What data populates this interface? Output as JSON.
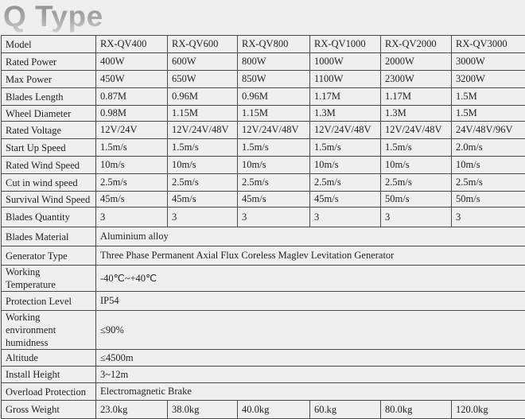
{
  "title": "Q Type",
  "table": {
    "rows": [
      {
        "label": "Model",
        "values": [
          "RX-QV400",
          "RX-QV600",
          "RX-QV800",
          "RX-QV1000",
          "RX-QV2000",
          "RX-QV3000"
        ]
      },
      {
        "label": "Rated Power",
        "values": [
          "400W",
          "600W",
          "800W",
          "1000W",
          "2000W",
          "3000W"
        ]
      },
      {
        "label": "Max Power",
        "values": [
          "450W",
          "650W",
          "850W",
          "1100W",
          "2300W",
          "3200W"
        ]
      },
      {
        "label": "Blades Length",
        "values": [
          "0.87M",
          "0.96M",
          "0.96M",
          "1.17M",
          "1.17M",
          "1.5M"
        ]
      },
      {
        "label": "Wheel Diameter",
        "values": [
          "0.98M",
          "1.15M",
          "1.15M",
          "1.3M",
          "1.3M",
          "1.5M"
        ]
      },
      {
        "label": "Rated Voltage",
        "values": [
          "12V/24V",
          "12V/24V/48V",
          "12V/24V/48V",
          "12V/24V/48V",
          "12V/24V/48V",
          "24V/48V/96V"
        ]
      },
      {
        "label": "Start Up Speed",
        "values": [
          "1.5m/s",
          "1.5m/s",
          "1.5m/s",
          "1.5m/s",
          "1.5m/s",
          "2.0m/s"
        ]
      },
      {
        "label": "Rated Wind Speed",
        "values": [
          "10m/s",
          "10m/s",
          "10m/s",
          "10m/s",
          "10m/s",
          "10m/s"
        ]
      },
      {
        "label": "Cut in wind speed",
        "values": [
          "2.5m/s",
          "2.5m/s",
          "2.5m/s",
          "2.5m/s",
          "2.5m/s",
          "2.5m/s"
        ]
      },
      {
        "label": "Survival Wind Speed",
        "values": [
          "45m/s",
          "45m/s",
          "45m/s",
          "45m/s",
          "50m/s",
          "50m/s"
        ]
      },
      {
        "label": "Blades Quantity",
        "values": [
          "3",
          "3",
          "3",
          "3",
          "3",
          "3"
        ]
      },
      {
        "label": "Blades Material",
        "value": "Aluminium alloy"
      },
      {
        "label": "Generator Type",
        "value": "Three Phase Permanent Axial Flux Coreless Maglev Levitation Generator"
      },
      {
        "label": "Working Temperature",
        "value": "-40℃~+40℃"
      },
      {
        "label": "Protection Level",
        "value": "IP54"
      },
      {
        "label": "Working environment humidness",
        "value": "≤90%"
      },
      {
        "label": "Altitude",
        "value": "≤4500m"
      },
      {
        "label": "Install Height",
        "value": "3~12m"
      },
      {
        "label": "Overload Protection",
        "value": "Electromagnetic Brake"
      },
      {
        "label": "Gross Weight",
        "values": [
          "23.0kg",
          "38.0kg",
          "40.0kg",
          "60.kg",
          "80.0kg",
          "120.0kg"
        ]
      }
    ]
  }
}
